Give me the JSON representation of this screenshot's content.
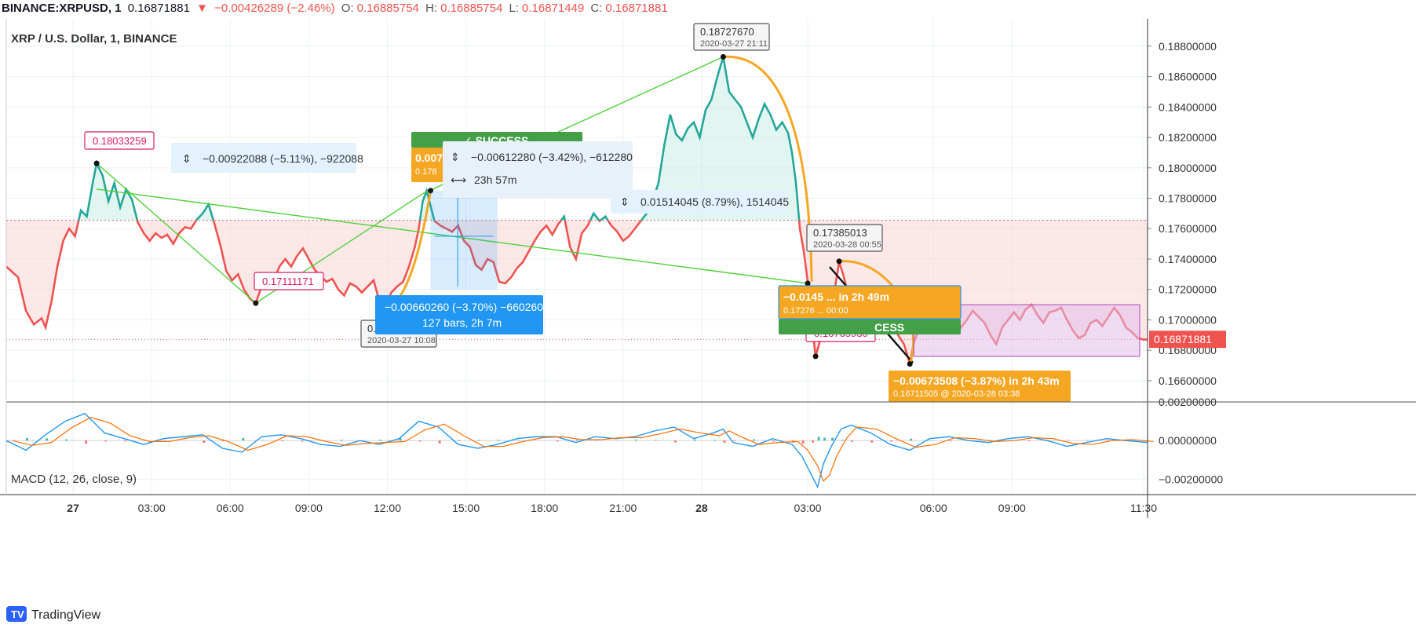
{
  "header": {
    "symbol": "BINANCE:XRPUSD, 1",
    "last": "0.16871881",
    "arrow": "▼",
    "change": "−0.00426289 (−2.46%)",
    "o_label": "O:",
    "o_value": "0.16885754",
    "h_label": "H:",
    "h_value": "0.16885754",
    "l_label": "L:",
    "l_value": "0.16871449",
    "c_label": "C:",
    "c_value": "0.16871881"
  },
  "chart_title": "XRP / U.S. Dollar, 1, BINANCE",
  "indicator_label": "MACD (12, 26, close, 9)",
  "branding": "TradingView",
  "colors": {
    "price_up": "#26a69a",
    "price_down": "#ef5350",
    "drawing_green": "#4cd137",
    "drawing_orange": "#f5a623",
    "measure_blue": "#2196f3",
    "rect_purple": "#ce93d8",
    "success_green": "#43a047"
  },
  "chart_data": {
    "type": "line",
    "x_ticks": [
      "27",
      "03:00",
      "06:00",
      "09:00",
      "12:00",
      "15:00",
      "18:00",
      "21:00",
      "28",
      "03:00",
      "06:00",
      "09:00",
      "11:30"
    ],
    "bold_ticks": [
      "27",
      "28"
    ],
    "price_axis": {
      "ticks": [
        "0.18800000",
        "0.18600000",
        "0.18400000",
        "0.18200000",
        "0.18000000",
        "0.17800000",
        "0.17600000",
        "0.17400000",
        "0.17200000",
        "0.17000000",
        "0.16800000",
        "0.16600000"
      ],
      "ylim": [
        0.1646,
        0.1898
      ],
      "current_price": "0.16871881",
      "prev_close_line": 0.17655
    },
    "macd_axis": {
      "ticks": [
        "0.00200000",
        "0.00000000",
        "−0.00200000"
      ],
      "ylim": [
        -0.0028,
        0.002
      ]
    },
    "price_series": [
      [
        0,
        0.1735
      ],
      [
        6,
        0.1728
      ],
      [
        10,
        0.1706
      ],
      [
        14,
        0.1697
      ],
      [
        18,
        0.1701
      ],
      [
        20,
        0.1695
      ],
      [
        23,
        0.1712
      ],
      [
        26,
        0.1735
      ],
      [
        29,
        0.1752
      ],
      [
        32,
        0.176
      ],
      [
        35,
        0.1755
      ],
      [
        38,
        0.1772
      ],
      [
        41,
        0.1768
      ],
      [
        44,
        0.179
      ],
      [
        46,
        0.1803
      ],
      [
        49,
        0.1795
      ],
      [
        52,
        0.1778
      ],
      [
        55,
        0.179
      ],
      [
        58,
        0.1774
      ],
      [
        61,
        0.1786
      ],
      [
        64,
        0.1779
      ],
      [
        67,
        0.1764
      ],
      [
        70,
        0.1757
      ],
      [
        73,
        0.1752
      ],
      [
        76,
        0.1757
      ],
      [
        79,
        0.1754
      ],
      [
        82,
        0.1756
      ],
      [
        85,
        0.175
      ],
      [
        88,
        0.1757
      ],
      [
        91,
        0.1761
      ],
      [
        94,
        0.176
      ],
      [
        97,
        0.1766
      ],
      [
        100,
        0.177
      ],
      [
        103,
        0.1776
      ],
      [
        106,
        0.1763
      ],
      [
        109,
        0.1749
      ],
      [
        112,
        0.1732
      ],
      [
        115,
        0.1726
      ],
      [
        118,
        0.173
      ],
      [
        121,
        0.172
      ],
      [
        124,
        0.1714
      ],
      [
        127,
        0.1711
      ],
      [
        130,
        0.1722
      ],
      [
        133,
        0.1729
      ],
      [
        136,
        0.1725
      ],
      [
        139,
        0.1735
      ],
      [
        142,
        0.174
      ],
      [
        145,
        0.1735
      ],
      [
        148,
        0.1742
      ],
      [
        151,
        0.1747
      ],
      [
        154,
        0.174
      ],
      [
        157,
        0.1733
      ],
      [
        160,
        0.1729
      ],
      [
        163,
        0.1725
      ],
      [
        166,
        0.1727
      ],
      [
        169,
        0.172
      ],
      [
        172,
        0.1716
      ],
      [
        175,
        0.1724
      ],
      [
        178,
        0.1722
      ],
      [
        181,
        0.1718
      ],
      [
        184,
        0.1722
      ],
      [
        187,
        0.1726
      ],
      [
        190,
        0.1712
      ],
      [
        193,
        0.1708
      ],
      [
        196,
        0.1718
      ],
      [
        199,
        0.1722
      ],
      [
        202,
        0.1725
      ],
      [
        205,
        0.1735
      ],
      [
        208,
        0.1748
      ],
      [
        210,
        0.176
      ],
      [
        212,
        0.1778
      ],
      [
        214,
        0.1785
      ],
      [
        216,
        0.1775
      ],
      [
        218,
        0.1765
      ],
      [
        221,
        0.1762
      ],
      [
        224,
        0.176
      ],
      [
        227,
        0.1758
      ],
      [
        230,
        0.1762
      ],
      [
        233,
        0.1752
      ],
      [
        236,
        0.1748
      ],
      [
        239,
        0.1736
      ],
      [
        242,
        0.1733
      ],
      [
        245,
        0.174
      ],
      [
        248,
        0.1738
      ],
      [
        251,
        0.1725
      ],
      [
        254,
        0.1724
      ],
      [
        257,
        0.1728
      ],
      [
        260,
        0.1734
      ],
      [
        263,
        0.1738
      ],
      [
        266,
        0.1745
      ],
      [
        269,
        0.1752
      ],
      [
        272,
        0.1758
      ],
      [
        275,
        0.1762
      ],
      [
        278,
        0.1756
      ],
      [
        281,
        0.1763
      ],
      [
        284,
        0.1768
      ],
      [
        287,
        0.1748
      ],
      [
        290,
        0.174
      ],
      [
        293,
        0.1757
      ],
      [
        296,
        0.1762
      ],
      [
        299,
        0.177
      ],
      [
        302,
        0.1765
      ],
      [
        305,
        0.1768
      ],
      [
        308,
        0.1762
      ],
      [
        311,
        0.1758
      ],
      [
        314,
        0.1752
      ],
      [
        317,
        0.1755
      ],
      [
        320,
        0.176
      ],
      [
        323,
        0.1765
      ],
      [
        326,
        0.177
      ],
      [
        329,
        0.1778
      ],
      [
        332,
        0.179
      ],
      [
        335,
        0.1815
      ],
      [
        338,
        0.1835
      ],
      [
        341,
        0.1822
      ],
      [
        344,
        0.1818
      ],
      [
        347,
        0.1826
      ],
      [
        350,
        0.183
      ],
      [
        353,
        0.182
      ],
      [
        356,
        0.1838
      ],
      [
        359,
        0.1845
      ],
      [
        362,
        0.186
      ],
      [
        365,
        0.1873
      ],
      [
        368,
        0.185
      ],
      [
        371,
        0.1845
      ],
      [
        374,
        0.184
      ],
      [
        377,
        0.183
      ],
      [
        380,
        0.182
      ],
      [
        383,
        0.1832
      ],
      [
        386,
        0.1842
      ],
      [
        389,
        0.1835
      ],
      [
        392,
        0.1825
      ],
      [
        395,
        0.183
      ],
      [
        398,
        0.1823
      ],
      [
        400,
        0.181
      ],
      [
        402,
        0.179
      ],
      [
        404,
        0.176
      ],
      [
        406,
        0.1745
      ],
      [
        408,
        0.1725
      ],
      [
        410,
        0.17
      ],
      [
        412,
        0.1676
      ],
      [
        414,
        0.1685
      ],
      [
        416,
        0.1696
      ],
      [
        418,
        0.1705
      ],
      [
        420,
        0.1713
      ],
      [
        422,
        0.1722
      ],
      [
        424,
        0.1738
      ],
      [
        426,
        0.173
      ],
      [
        428,
        0.172
      ],
      [
        430,
        0.1715
      ],
      [
        433,
        0.171
      ],
      [
        436,
        0.1717
      ],
      [
        439,
        0.172
      ],
      [
        442,
        0.1712
      ],
      [
        445,
        0.1708
      ],
      [
        448,
        0.1702
      ],
      [
        451,
        0.1698
      ],
      [
        454,
        0.169
      ],
      [
        457,
        0.1684
      ],
      [
        460,
        0.1671
      ],
      [
        462,
        0.1685
      ],
      [
        465,
        0.1695
      ],
      [
        468,
        0.1702
      ],
      [
        471,
        0.1696
      ],
      [
        474,
        0.1705
      ],
      [
        477,
        0.17
      ],
      [
        480,
        0.1708
      ],
      [
        483,
        0.1702
      ],
      [
        486,
        0.1695
      ],
      [
        489,
        0.17
      ],
      [
        492,
        0.1706
      ],
      [
        495,
        0.1702
      ],
      [
        498,
        0.1698
      ],
      [
        501,
        0.169
      ],
      [
        504,
        0.1684
      ],
      [
        507,
        0.1695
      ],
      [
        510,
        0.17
      ],
      [
        513,
        0.1705
      ],
      [
        516,
        0.17
      ],
      [
        519,
        0.1707
      ],
      [
        522,
        0.171
      ],
      [
        525,
        0.1703
      ],
      [
        528,
        0.1698
      ],
      [
        531,
        0.1705
      ],
      [
        534,
        0.1706
      ],
      [
        537,
        0.1708
      ],
      [
        540,
        0.17
      ],
      [
        543,
        0.1693
      ],
      [
        546,
        0.1688
      ],
      [
        549,
        0.169
      ],
      [
        552,
        0.1698
      ],
      [
        555,
        0.17
      ],
      [
        558,
        0.1696
      ],
      [
        561,
        0.1702
      ],
      [
        564,
        0.1708
      ],
      [
        567,
        0.1703
      ],
      [
        570,
        0.1695
      ],
      [
        573,
        0.1692
      ],
      [
        576,
        0.1688
      ],
      [
        579,
        0.1687
      ],
      [
        581,
        0.1687
      ]
    ],
    "macd_series": [
      [
        0,
        0.0
      ],
      [
        10,
        -0.0005
      ],
      [
        20,
        0.0003
      ],
      [
        30,
        0.001
      ],
      [
        40,
        0.0014
      ],
      [
        50,
        0.0004
      ],
      [
        60,
        0.0001
      ],
      [
        70,
        -0.0002
      ],
      [
        80,
        0.0001
      ],
      [
        90,
        0.0002
      ],
      [
        100,
        0.0003
      ],
      [
        110,
        -0.0004
      ],
      [
        120,
        -0.0006
      ],
      [
        130,
        0.0002
      ],
      [
        140,
        0.0003
      ],
      [
        150,
        0.0001
      ],
      [
        160,
        -0.0002
      ],
      [
        170,
        -0.0003
      ],
      [
        180,
        0.0
      ],
      [
        190,
        -0.0002
      ],
      [
        200,
        0.0001
      ],
      [
        210,
        0.001
      ],
      [
        220,
        0.0007
      ],
      [
        230,
        -0.0002
      ],
      [
        240,
        -0.0004
      ],
      [
        250,
        -0.0002
      ],
      [
        260,
        0.0001
      ],
      [
        270,
        0.0002
      ],
      [
        280,
        0.0002
      ],
      [
        290,
        -0.0001
      ],
      [
        300,
        0.0002
      ],
      [
        310,
        0.0001
      ],
      [
        320,
        0.0002
      ],
      [
        330,
        0.0005
      ],
      [
        340,
        0.0007
      ],
      [
        350,
        0.0001
      ],
      [
        360,
        0.0004
      ],
      [
        365,
        0.0006
      ],
      [
        370,
        -0.0001
      ],
      [
        380,
        -0.0003
      ],
      [
        390,
        0.0001
      ],
      [
        400,
        -0.0002
      ],
      [
        405,
        -0.0008
      ],
      [
        410,
        -0.0018
      ],
      [
        413,
        -0.0024
      ],
      [
        416,
        -0.0012
      ],
      [
        420,
        -0.0003
      ],
      [
        425,
        0.0006
      ],
      [
        430,
        0.0008
      ],
      [
        440,
        0.0004
      ],
      [
        450,
        -0.0002
      ],
      [
        460,
        -0.0005
      ],
      [
        470,
        0.0001
      ],
      [
        480,
        0.0002
      ],
      [
        490,
        0.0
      ],
      [
        500,
        -0.0001
      ],
      [
        510,
        0.0001
      ],
      [
        520,
        0.0002
      ],
      [
        530,
        0.0
      ],
      [
        540,
        -0.0003
      ],
      [
        550,
        -0.0001
      ],
      [
        560,
        0.0001
      ],
      [
        570,
        0.0
      ],
      [
        581,
        -0.0001
      ]
    ],
    "annotations": {
      "high_left": {
        "label": "0.18033259"
      },
      "low_left": {
        "label": "0.17111171"
      },
      "peak": {
        "price": "0.18727670",
        "time": "2020-03-27 21:11"
      },
      "mid_peak": {
        "price": "0.17385013",
        "time": "2020-03-28 00:55"
      },
      "low_mid": {
        "price": "0.1709",
        "time": "2020-03-27 10:08"
      },
      "pink_low": {
        "label": "0.16765930"
      },
      "measure1": {
        "text": "−0.00922088 (−5.11%), −922088"
      },
      "measure2": {
        "text": "−0.00612280 (−3.42%), −612280"
      },
      "measure2_time": {
        "text": "23h 57m"
      },
      "measure3": {
        "text": "0.01514045 (8.79%), 1514045"
      },
      "success_label": {
        "text": "✓ SUCCESS"
      },
      "success2_label": {
        "text": "CESS"
      },
      "orange_target1": {
        "line1": "0.007",
        "line2": "0.178"
      },
      "blue_measure": {
        "line1": "−0.00660260 (−3.70%) −660260",
        "line2": "127 bars, 2h 7m"
      },
      "orange_box2": {
        "line1": "−0.0145 ... in 2h 49m",
        "line2": "0.17276 ... 00:00"
      },
      "orange_box3": {
        "line1": "−0.00673508 (−3.87%) in 2h 43m",
        "line2": "0.16711505 @ 2020-03-28 03:38"
      }
    }
  }
}
